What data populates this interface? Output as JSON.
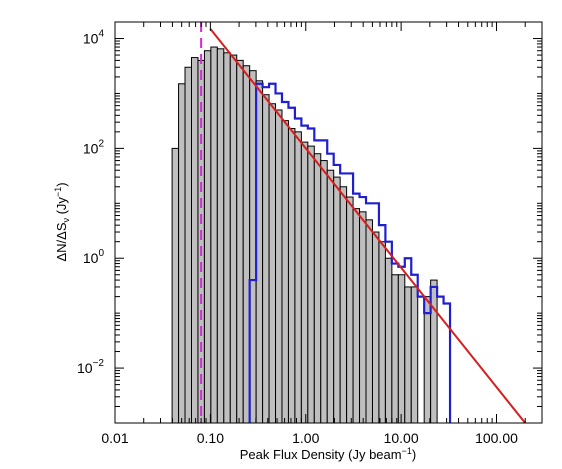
{
  "chart_data": {
    "type": "bar",
    "xscale": "log",
    "yscale": "log",
    "xlim": [
      0.01,
      300
    ],
    "ylim": [
      0.001,
      20000
    ],
    "xlabel": "Peak Flux Density (Jy beam",
    "xlabel_sup": "−1",
    "xlabel_tail": ")",
    "ylabel": "ΔN/ΔS",
    "ylabel_sub": "ν",
    "ylabel_mid": " (Jy",
    "ylabel_sup": "−1",
    "ylabel_tail": ")",
    "x_ticks": [
      {
        "value": 0.01,
        "label": "0.01"
      },
      {
        "value": 0.1,
        "label": "0.10"
      },
      {
        "value": 1,
        "label": "1.00"
      },
      {
        "value": 10,
        "label": "10.00"
      },
      {
        "value": 100,
        "label": "100.00"
      }
    ],
    "y_ticks": [
      {
        "value": 0.01,
        "base": "10",
        "exp": "−2"
      },
      {
        "value": 1,
        "base": "10",
        "exp": "0"
      },
      {
        "value": 100,
        "base": "10",
        "exp": "2"
      },
      {
        "value": 10000,
        "base": "10",
        "exp": "4"
      }
    ],
    "grey_histogram": {
      "color": "#bfbfbf",
      "edges": [
        0.0397,
        0.0464,
        0.0542,
        0.0634,
        0.0741,
        0.0866,
        0.1012,
        0.1183,
        0.1383,
        0.1617,
        0.189,
        0.2209,
        0.2582,
        0.3018,
        0.3528,
        0.4124,
        0.482,
        0.5634,
        0.6586,
        0.7698,
        0.8998,
        1.0518,
        1.2294,
        1.437,
        1.6797,
        1.9634,
        2.2949,
        2.6825,
        3.1355,
        3.665,
        4.284,
        5.0075,
        5.8532,
        6.8417,
        7.9971,
        9.3477,
        10.9263,
        12.7715,
        14.9283,
        17.4495,
        20.3963,
        23.8408,
        27.867
      ],
      "values": [
        100,
        1500,
        3000,
        4500,
        4000,
        6000,
        7000,
        6500,
        5500,
        5000,
        4000,
        3200,
        2600,
        1700,
        950,
        650,
        500,
        320,
        230,
        200,
        130,
        110,
        80,
        60,
        40,
        30,
        20,
        13,
        8,
        7,
        5,
        3,
        2,
        1,
        0.5,
        0.5,
        0.3,
        0.3,
        0.001,
        0.2,
        0.4,
        0.001
      ]
    },
    "blue_histogram": {
      "color": "#1f1fd0",
      "edges": [
        0.2582,
        0.3018,
        0.3528,
        0.4124,
        0.482,
        0.5634,
        0.6586,
        0.7698,
        0.8998,
        1.0518,
        1.2294,
        1.437,
        1.6797,
        1.9634,
        2.2949,
        2.6825,
        3.1355,
        3.665,
        4.284,
        5.0075,
        5.8532,
        6.8417,
        7.9971,
        9.3477,
        10.9263,
        12.7715,
        14.9283,
        17.4495,
        20.3963,
        23.8408,
        27.867,
        32.5731
      ],
      "values": [
        0.4,
        1500,
        1300,
        1500,
        1000,
        700,
        550,
        350,
        260,
        230,
        140,
        140,
        80,
        50,
        35,
        35,
        15,
        13,
        10,
        10,
        4,
        2,
        0.8,
        0.7,
        1.0,
        0.5,
        0.2,
        0.1,
        0.3,
        0.2,
        0.15
      ]
    },
    "power_law_fit": {
      "color": "#d81e1e",
      "x": [
        0.1,
        200
      ],
      "y": [
        15000,
        0.001
      ]
    },
    "completeness_line": {
      "color": "#d826d8",
      "x": 0.08
    }
  }
}
